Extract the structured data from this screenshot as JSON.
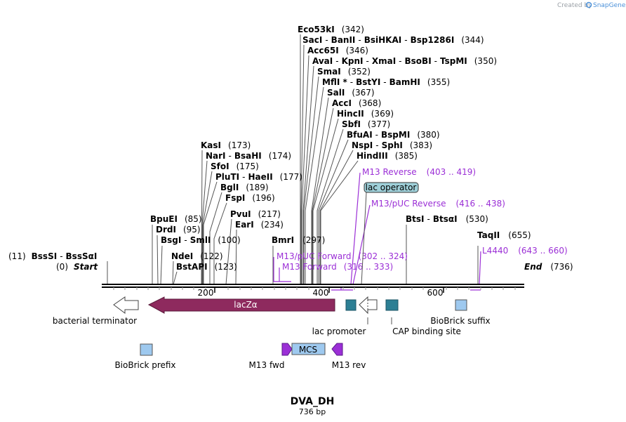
{
  "header": {
    "credit": "Created by",
    "brand": "SnapGene"
  },
  "map": {
    "name": "DVA_DH",
    "length": "736 bp",
    "start_label": "Start",
    "end_label": "End",
    "start_pos": "(0)",
    "end_pos": "(736)",
    "ticks": [
      "200",
      "400",
      "600"
    ]
  },
  "sites": [
    {
      "names": [
        "Eco53kI"
      ],
      "pos": "(342)"
    },
    {
      "names": [
        "SacI",
        "BanII",
        "BsiHKAI",
        "Bsp1286I"
      ],
      "pos": "(344)"
    },
    {
      "names": [
        "Acc65I"
      ],
      "pos": "(346)"
    },
    {
      "names": [
        "AvaI",
        "KpnI",
        "XmaI",
        "BsoBI",
        "TspMI"
      ],
      "pos": "(350)"
    },
    {
      "names": [
        "SmaI"
      ],
      "pos": "(352)"
    },
    {
      "names": [
        "MflI *",
        "BstYI",
        "BamHI"
      ],
      "pos": "(355)"
    },
    {
      "names": [
        "SalI"
      ],
      "pos": "(367)"
    },
    {
      "names": [
        "AccI"
      ],
      "pos": "(368)"
    },
    {
      "names": [
        "HincII"
      ],
      "pos": "(369)"
    },
    {
      "names": [
        "SbfI"
      ],
      "pos": "(377)"
    },
    {
      "names": [
        "BfuAI",
        "BspMI"
      ],
      "pos": "(380)"
    },
    {
      "names": [
        "NspI",
        "SphI"
      ],
      "pos": "(383)"
    },
    {
      "names": [
        "HindIII"
      ],
      "pos": "(385)"
    },
    {
      "names": [
        "KasI"
      ],
      "pos": "(173)"
    },
    {
      "names": [
        "NarI",
        "BsaHI"
      ],
      "pos": "(174)"
    },
    {
      "names": [
        "SfoI"
      ],
      "pos": "(175)"
    },
    {
      "names": [
        "PluTI",
        "HaeII"
      ],
      "pos": "(177)"
    },
    {
      "names": [
        "BglI"
      ],
      "pos": "(189)"
    },
    {
      "names": [
        "FspI"
      ],
      "pos": "(196)"
    },
    {
      "names": [
        "PvuI"
      ],
      "pos": "(217)"
    },
    {
      "names": [
        "EarI"
      ],
      "pos": "(234)"
    },
    {
      "names": [
        "BpuEI"
      ],
      "pos": "(85)"
    },
    {
      "names": [
        "DrdI"
      ],
      "pos": "(95)"
    },
    {
      "names": [
        "BsgI",
        "SmlI"
      ],
      "pos": "(100)"
    },
    {
      "names": [
        "NdeI"
      ],
      "pos": "(122)"
    },
    {
      "names": [
        "BstAPI"
      ],
      "pos": "(123)"
    },
    {
      "names": [
        "BmrI"
      ],
      "pos": "(297)"
    },
    {
      "names": [
        "BtsI",
        "BtsαI"
      ],
      "pos": "(530)"
    },
    {
      "names": [
        "TaqII"
      ],
      "pos": "(655)"
    },
    {
      "names": [
        "BssSI",
        "BssSαI"
      ],
      "pos": "(11)"
    }
  ],
  "primers": [
    {
      "name": "M13 Reverse",
      "range": "(403 .. 419)"
    },
    {
      "name": "M13/pUC Reverse",
      "range": "(416 .. 438)"
    },
    {
      "name": "M13/pUC Forward",
      "range": "(302 .. 324)"
    },
    {
      "name": "M13 Forward",
      "range": "(316 .. 333)"
    },
    {
      "name": "L4440",
      "range": "(643 .. 660)"
    }
  ],
  "features": {
    "lac_operator": "lac operator",
    "bacterial_terminator": "bacterial terminator",
    "lacZa": "lacZα",
    "lac_promoter": "lac promoter",
    "cap_site": "CAP binding site",
    "biobrick_suffix": "BioBrick suffix",
    "biobrick_prefix": "BioBrick prefix",
    "m13_fwd": "M13 fwd",
    "mcs": "MCS",
    "m13_rev": "M13 rev"
  },
  "colors": {
    "lacZ": "#8e2a5e",
    "teal": "#2c7f94",
    "lightblue": "#9ec9ef",
    "primer": "#9b2fd6",
    "operator": "#9fd0d9"
  }
}
